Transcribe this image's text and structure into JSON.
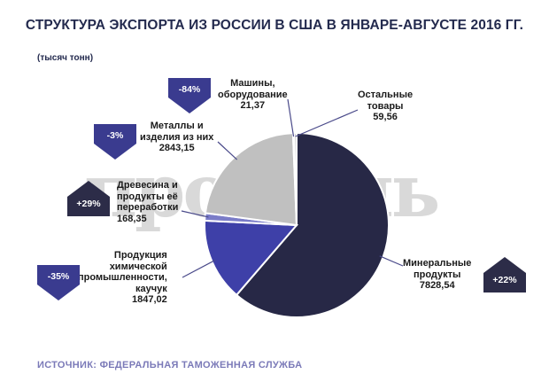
{
  "title": "СТРУКТУРА ЭКСПОРТА ИЗ РОССИИ В США В ЯНВАРЕ-АВГУСТЕ 2016 ГГ.",
  "units": "(тысяч тонн)",
  "watermark": "профиль",
  "source": "ИСТОЧНИК: ФЕДЕРАЛЬНАЯ ТАМОЖЕННАЯ СЛУЖБА",
  "colors": {
    "mineral": "#272846",
    "chemical": "#3e40a8",
    "wood": "#7a7cc8",
    "metals": "#c0c0c0",
    "machines": "#eeeeee",
    "other": "#d6d6d6",
    "badge": "#3a3b8f",
    "badge_up": "#2c2c48"
  },
  "chart_data": {
    "type": "pie",
    "title": "СТРУКТУРА ЭКСПОРТА ИЗ РОССИИ В США В ЯНВАРЕ-АВГУСТЕ 2016 ГГ.",
    "unit": "(тысяч тонн)",
    "slices": [
      {
        "lines": [
          "Минеральные",
          "продукты"
        ],
        "value": 7828.54,
        "value_text": "7828,54",
        "change": "+22%",
        "direction": "up",
        "color_key": "mineral"
      },
      {
        "lines": [
          "Продукция",
          "химической",
          "промышленности,",
          "каучук"
        ],
        "value": 1847.02,
        "value_text": "1847,02",
        "change": "-35%",
        "direction": "down",
        "color_key": "chemical"
      },
      {
        "lines": [
          "Древесина и",
          "продукты её",
          "переработки"
        ],
        "value": 168.35,
        "value_text": "168,35",
        "change": "+29%",
        "direction": "up",
        "color_key": "wood"
      },
      {
        "lines": [
          "Металлы и",
          "изделия из них"
        ],
        "value": 2843.15,
        "value_text": "2843,15",
        "change": "-3%",
        "direction": "down",
        "color_key": "metals"
      },
      {
        "lines": [
          "Машины,",
          "оборудование"
        ],
        "value": 21.37,
        "value_text": "21,37",
        "change": "-84%",
        "direction": "down",
        "color_key": "machines"
      },
      {
        "lines": [
          "Остальные",
          "товары"
        ],
        "value": 59.56,
        "value_text": "59,56",
        "change": "",
        "direction": "",
        "color_key": "other"
      }
    ]
  }
}
